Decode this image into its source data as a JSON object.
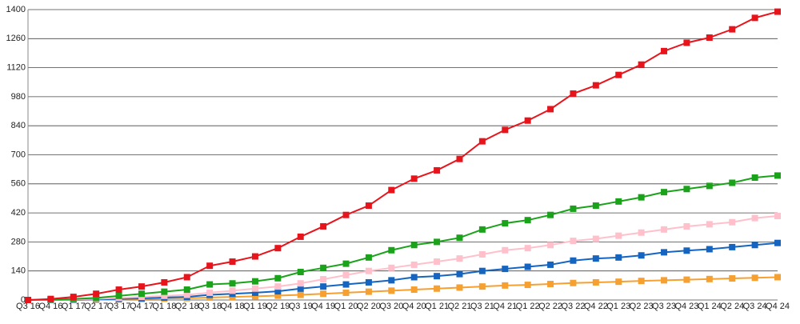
{
  "chart_data": {
    "type": "line",
    "categories": [
      "Q3 16",
      "Q4 16",
      "Q1 17",
      "Q2 17",
      "Q3 17",
      "Q4 17",
      "Q1 18",
      "Q2 18",
      "Q3 18",
      "Q4 18",
      "Q1 19",
      "Q2 19",
      "Q3 19",
      "Q4 19",
      "Q1 20",
      "Q2 20",
      "Q3 20",
      "Q4 20",
      "Q1 21",
      "Q2 21",
      "Q3 21",
      "Q4 21",
      "Q1 22",
      "Q2 22",
      "Q3 22",
      "Q4 22",
      "Q1 23",
      "Q2 23",
      "Q3 23",
      "Q4 23",
      "Q1 24",
      "Q2 24",
      "Q3 24",
      "Q4 24"
    ],
    "series": [
      {
        "color": "#e8141c",
        "values": [
          0,
          5,
          15,
          30,
          50,
          65,
          85,
          110,
          165,
          185,
          210,
          250,
          305,
          355,
          410,
          455,
          530,
          585,
          625,
          680,
          765,
          820,
          865,
          920,
          995,
          1035,
          1085,
          1135,
          1200,
          1240,
          1265,
          1305,
          1360,
          1390
        ]
      },
      {
        "color": "#1aa31a",
        "values": [
          0,
          2,
          5,
          10,
          20,
          30,
          40,
          50,
          75,
          80,
          90,
          105,
          135,
          155,
          175,
          205,
          240,
          265,
          280,
          300,
          340,
          370,
          385,
          410,
          440,
          455,
          475,
          495,
          520,
          535,
          550,
          565,
          590,
          600
        ]
      },
      {
        "color": "#ffc0cb",
        "values": [
          0,
          1,
          3,
          6,
          10,
          15,
          20,
          25,
          35,
          45,
          55,
          65,
          80,
          100,
          120,
          140,
          155,
          170,
          185,
          200,
          220,
          240,
          250,
          265,
          285,
          295,
          310,
          325,
          340,
          355,
          365,
          375,
          395,
          405
        ]
      },
      {
        "color": "#1565c0",
        "values": [
          0,
          0,
          1,
          3,
          5,
          8,
          12,
          15,
          25,
          30,
          35,
          42,
          55,
          65,
          75,
          85,
          95,
          110,
          115,
          125,
          140,
          150,
          160,
          170,
          190,
          200,
          205,
          215,
          230,
          238,
          245,
          255,
          265,
          275
        ]
      },
      {
        "color": "#f5a030",
        "values": [
          0,
          0,
          1,
          2,
          3,
          5,
          7,
          9,
          12,
          15,
          18,
          21,
          25,
          30,
          35,
          40,
          45,
          50,
          55,
          60,
          65,
          70,
          73,
          77,
          82,
          85,
          88,
          92,
          95,
          98,
          101,
          104,
          107,
          110
        ]
      }
    ],
    "ylim": [
      0,
      1400
    ],
    "yticks": [
      0,
      140,
      280,
      420,
      560,
      700,
      840,
      980,
      1120,
      1260,
      1400
    ],
    "grid": true
  }
}
